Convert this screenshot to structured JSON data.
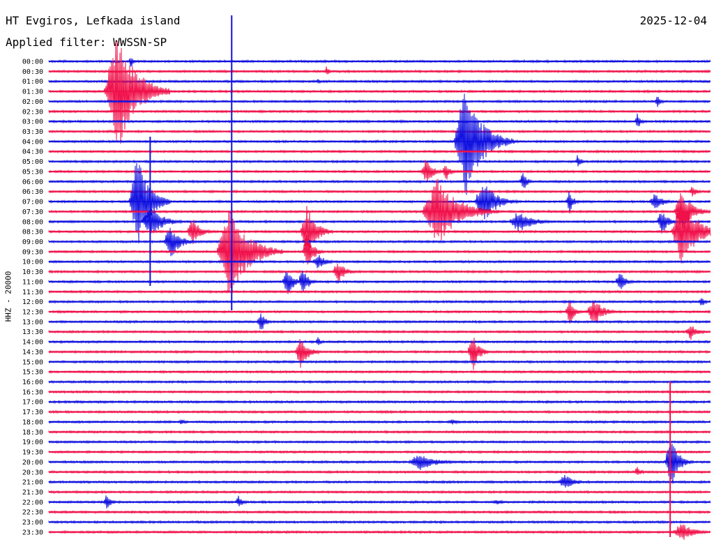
{
  "header": {
    "station": "HT Evgiros, Lefkada island",
    "date": "2025-12-04",
    "filter": "Applied filter: WWSSN-SP"
  },
  "chart_data": {
    "type": "helicorder",
    "ylabel": "HHZ - 20000",
    "row_times": [
      "00:00",
      "00:30",
      "01:00",
      "01:30",
      "02:00",
      "02:30",
      "03:00",
      "03:30",
      "04:00",
      "04:30",
      "05:00",
      "05:30",
      "06:00",
      "06:30",
      "07:00",
      "07:30",
      "08:00",
      "08:30",
      "09:00",
      "09:30",
      "10:00",
      "10:30",
      "11:00",
      "11:30",
      "12:00",
      "12:30",
      "13:00",
      "13:30",
      "14:00",
      "14:30",
      "15:00",
      "15:30",
      "16:00",
      "16:30",
      "17:00",
      "17:30",
      "18:00",
      "18:30",
      "19:00",
      "19:30",
      "20:00",
      "20:30",
      "21:00",
      "21:30",
      "22:00",
      "22:30",
      "23:00",
      "23:30"
    ],
    "trace_colors": [
      "#1010e0",
      "#f0104a"
    ],
    "x_unit": "minutes into row",
    "x_range": [
      0,
      30
    ],
    "events": [
      {
        "row": 0,
        "x": 3.7,
        "amp": 12,
        "dur": 0.3
      },
      {
        "row": 1,
        "x": 12.6,
        "amp": 8,
        "dur": 0.4
      },
      {
        "row": 2,
        "x": 12.2,
        "amp": 4,
        "dur": 0.4
      },
      {
        "row": 3,
        "x": 3.1,
        "amp": 90,
        "dur": 2.4
      },
      {
        "row": 4,
        "x": 27.6,
        "amp": 10,
        "dur": 0.5
      },
      {
        "row": 6,
        "x": 26.7,
        "amp": 12,
        "dur": 0.5
      },
      {
        "row": 8,
        "x": 18.9,
        "amp": 80,
        "dur": 2.2
      },
      {
        "row": 10,
        "x": 24.0,
        "amp": 12,
        "dur": 0.4
      },
      {
        "row": 11,
        "x": 17.1,
        "amp": 18,
        "dur": 1.0
      },
      {
        "row": 11,
        "x": 18.0,
        "amp": 14,
        "dur": 0.6
      },
      {
        "row": 12,
        "x": 21.5,
        "amp": 14,
        "dur": 0.6
      },
      {
        "row": 13,
        "x": 29.2,
        "amp": 10,
        "dur": 0.6
      },
      {
        "row": 14,
        "x": 4.0,
        "amp": 70,
        "dur": 1.5
      },
      {
        "row": 14,
        "x": 19.7,
        "amp": 34,
        "dur": 1.6
      },
      {
        "row": 14,
        "x": 23.6,
        "amp": 18,
        "dur": 0.6
      },
      {
        "row": 14,
        "x": 27.5,
        "amp": 12,
        "dur": 1.2
      },
      {
        "row": 15,
        "x": 17.6,
        "amp": 50,
        "dur": 2.8
      },
      {
        "row": 15,
        "x": 28.7,
        "amp": 30,
        "dur": 1.4
      },
      {
        "row": 16,
        "x": 4.6,
        "amp": 24,
        "dur": 1.6
      },
      {
        "row": 16,
        "x": 21.3,
        "amp": 16,
        "dur": 1.8
      },
      {
        "row": 16,
        "x": 27.8,
        "amp": 20,
        "dur": 0.8
      },
      {
        "row": 17,
        "x": 28.7,
        "amp": 60,
        "dur": 1.8
      },
      {
        "row": 17,
        "x": 6.5,
        "amp": 22,
        "dur": 1.0
      },
      {
        "row": 17,
        "x": 11.7,
        "amp": 40,
        "dur": 1.2
      },
      {
        "row": 18,
        "x": 5.5,
        "amp": 25,
        "dur": 1.2
      },
      {
        "row": 19,
        "x": 8.2,
        "amp": 70,
        "dur": 2.4
      },
      {
        "row": 19,
        "x": 11.7,
        "amp": 30,
        "dur": 0.8
      },
      {
        "row": 20,
        "x": 12.2,
        "amp": 12,
        "dur": 1.0
      },
      {
        "row": 21,
        "x": 13.1,
        "amp": 16,
        "dur": 1.0
      },
      {
        "row": 22,
        "x": 10.8,
        "amp": 24,
        "dur": 0.8
      },
      {
        "row": 22,
        "x": 11.5,
        "amp": 20,
        "dur": 0.8
      },
      {
        "row": 22,
        "x": 25.9,
        "amp": 16,
        "dur": 0.8
      },
      {
        "row": 24,
        "x": 29.6,
        "amp": 10,
        "dur": 0.4
      },
      {
        "row": 25,
        "x": 23.6,
        "amp": 22,
        "dur": 0.6
      },
      {
        "row": 25,
        "x": 24.7,
        "amp": 22,
        "dur": 1.2
      },
      {
        "row": 26,
        "x": 9.6,
        "amp": 16,
        "dur": 0.6
      },
      {
        "row": 27,
        "x": 29.1,
        "amp": 12,
        "dur": 1.0
      },
      {
        "row": 28,
        "x": 12.2,
        "amp": 8,
        "dur": 0.4
      },
      {
        "row": 29,
        "x": 11.4,
        "amp": 25,
        "dur": 1.0
      },
      {
        "row": 29,
        "x": 19.2,
        "amp": 30,
        "dur": 0.8
      },
      {
        "row": 36,
        "x": 6.0,
        "amp": 5,
        "dur": 0.6
      },
      {
        "row": 36,
        "x": 18.3,
        "amp": 4,
        "dur": 1.0
      },
      {
        "row": 40,
        "x": 16.8,
        "amp": 12,
        "dur": 2.2
      },
      {
        "row": 40,
        "x": 28.2,
        "amp": 40,
        "dur": 1.0
      },
      {
        "row": 41,
        "x": 26.7,
        "amp": 8,
        "dur": 0.6
      },
      {
        "row": 42,
        "x": 23.4,
        "amp": 12,
        "dur": 1.2
      },
      {
        "row": 44,
        "x": 2.6,
        "amp": 12,
        "dur": 0.6
      },
      {
        "row": 44,
        "x": 8.6,
        "amp": 10,
        "dur": 0.6
      },
      {
        "row": 44,
        "x": 20.3,
        "amp": 4,
        "dur": 1.2
      },
      {
        "row": 47,
        "x": 28.7,
        "amp": 14,
        "dur": 1.6
      }
    ],
    "spikes": [
      {
        "row": 8,
        "x": 8.3,
        "top": 22,
        "bottom": 445
      },
      {
        "row": 12,
        "x": 4.6,
        "top": 196,
        "bottom": 410
      },
      {
        "row": 39,
        "x": 28.2,
        "top": 547,
        "bottom": 770
      }
    ]
  }
}
